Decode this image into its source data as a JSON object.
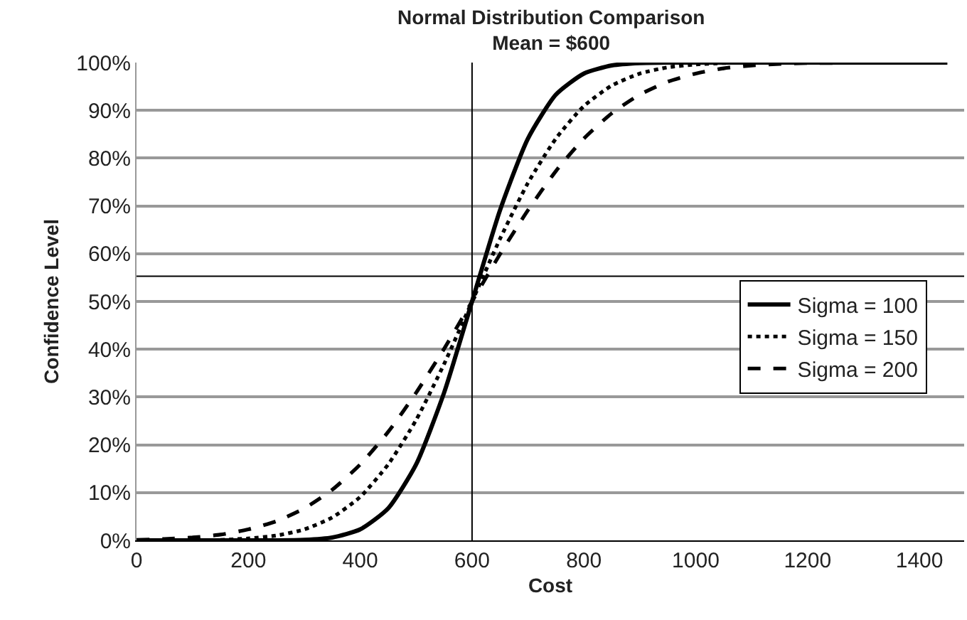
{
  "chart_data": {
    "type": "line",
    "title": "Normal Distribution Comparison",
    "subtitle": "Mean = $600",
    "xlabel": "Cost",
    "ylabel": "Confidence Level",
    "x": [
      0,
      50,
      100,
      150,
      200,
      250,
      300,
      350,
      400,
      450,
      500,
      550,
      600,
      650,
      700,
      750,
      800,
      850,
      900,
      950,
      1000,
      1050,
      1100,
      1150,
      1200,
      1250,
      1300,
      1350,
      1400,
      1450
    ],
    "series": [
      {
        "name": "Sigma = 100",
        "color": "#000000",
        "line_style": "solid",
        "values": [
          0,
          0,
          0,
          0,
          0,
          0,
          0.1,
          0.6,
          2.3,
          6.7,
          15.9,
          30.9,
          50,
          69.1,
          84.1,
          93.3,
          97.7,
          99.4,
          99.9,
          100,
          100,
          100,
          100,
          100,
          100,
          100,
          100,
          100,
          100,
          100
        ]
      },
      {
        "name": "Sigma = 150",
        "color": "#000000",
        "line_style": "dotted",
        "values": [
          null,
          null,
          null,
          0.1,
          0.4,
          1,
          2.3,
          4.8,
          9.1,
          15.9,
          25.2,
          36.9,
          50,
          63.1,
          74.8,
          84.1,
          90.9,
          95.2,
          97.7,
          99,
          99.6,
          99.9,
          100,
          100,
          null,
          null,
          null,
          null,
          null,
          null
        ]
      },
      {
        "name": "Sigma = 200",
        "color": "#000000",
        "line_style": "dashed",
        "values": [
          0.1,
          0.3,
          0.6,
          1.2,
          2.3,
          4,
          6.7,
          10.6,
          15.9,
          22.7,
          30.9,
          40.1,
          50,
          59.9,
          69.1,
          77.3,
          84.1,
          89.4,
          93.3,
          96,
          97.7,
          98.8,
          99.4,
          99.7,
          99.9,
          99.9,
          100,
          null,
          null,
          null
        ]
      }
    ],
    "xlim": [
      0,
      1480
    ],
    "xticks": [
      0,
      200,
      400,
      600,
      800,
      1000,
      1200,
      1400
    ],
    "ylim": [
      0,
      100
    ],
    "yticks": [
      {
        "value": 0,
        "label": "0%"
      },
      {
        "value": 10,
        "label": "10%"
      },
      {
        "value": 20,
        "label": "20%"
      },
      {
        "value": 30,
        "label": "30%"
      },
      {
        "value": 40,
        "label": "40%"
      },
      {
        "value": 50,
        "label": "50%"
      },
      {
        "value": 60,
        "label": "60%"
      },
      {
        "value": 70,
        "label": "70%"
      },
      {
        "value": 80,
        "label": "80%"
      },
      {
        "value": 90,
        "label": "90%"
      },
      {
        "value": 100,
        "label": "100%"
      }
    ],
    "ref_lines": [
      {
        "axis": "x",
        "value": 600,
        "color": "#000000"
      },
      {
        "axis": "y",
        "value": 55.3,
        "color": "#000000"
      }
    ],
    "grid": "y",
    "legend": "right",
    "marker": "none"
  }
}
